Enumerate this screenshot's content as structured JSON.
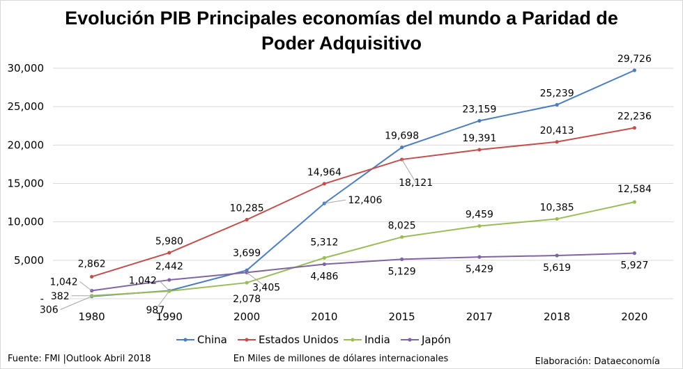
{
  "chart_data": {
    "type": "line",
    "title_lines": [
      "Evolución PIB Principales economías del mundo a Paridad de",
      "Poder Adquisitivo"
    ],
    "categories": [
      "1980",
      "1990",
      "2000",
      "2010",
      "2015",
      "2017",
      "2018",
      "2020"
    ],
    "ylim": [
      0,
      30000
    ],
    "y_ticks": [
      {
        "value": 0,
        "label": "-"
      },
      {
        "value": 5000,
        "label": "5,000"
      },
      {
        "value": 10000,
        "label": "10,000"
      },
      {
        "value": 15000,
        "label": "15,000"
      },
      {
        "value": 20000,
        "label": "20,000"
      },
      {
        "value": 25000,
        "label": "25,000"
      },
      {
        "value": 30000,
        "label": "30,000"
      }
    ],
    "grid": true,
    "legend_position": "bottom",
    "series": [
      {
        "name": "China",
        "color": "#4a7ebb",
        "values": [
          306,
          1042,
          3699,
          12406,
          19698,
          23159,
          25239,
          29726
        ],
        "labels": [
          "306",
          "1,042",
          "3,699",
          "12,406",
          "19,698",
          "23,159",
          "25,239",
          "29,726"
        ]
      },
      {
        "name": "Estados Unidos",
        "color": "#c0504d",
        "values": [
          2862,
          5980,
          10285,
          14964,
          18121,
          19391,
          20413,
          22236
        ],
        "labels": [
          "2,862",
          "5,980",
          "10,285",
          "14,964",
          "18,121",
          "19,391",
          "20,413",
          "22,236"
        ]
      },
      {
        "name": "India",
        "color": "#9bbb59",
        "values": [
          382,
          987,
          2078,
          5312,
          8025,
          9459,
          10385,
          12584
        ],
        "labels": [
          "382",
          "987",
          "2,078",
          "5,312",
          "8,025",
          "9,459",
          "10,385",
          "12,584"
        ]
      },
      {
        "name": "Japón",
        "color": "#8064a2",
        "values": [
          1042,
          2442,
          3405,
          4486,
          5129,
          5429,
          5619,
          5927
        ],
        "labels": [
          "1,042",
          "2,442",
          "3,405",
          "4,486",
          "5,129",
          "5,429",
          "5,619",
          "5,927"
        ]
      }
    ]
  },
  "footer": {
    "source": "Fuente: FMI |Outlook Abril 2018",
    "unit_note": "En Miles de millones de dólares internacionales",
    "credit": "Elaboración: Dataeconomía"
  }
}
